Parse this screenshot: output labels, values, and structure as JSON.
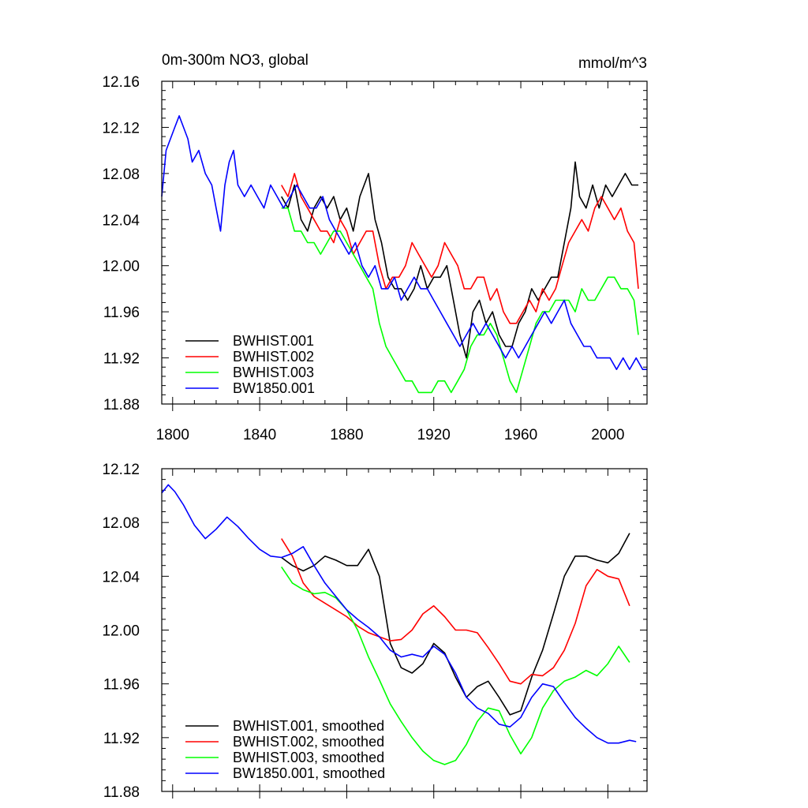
{
  "chart_data": [
    {
      "type": "line",
      "title": "0m-300m NO3, global",
      "units": "mmol/m^3",
      "xlabel": "",
      "ylabel": "",
      "xlim": [
        1795,
        2018
      ],
      "ylim": [
        11.88,
        12.16
      ],
      "xticks": [
        1800,
        1840,
        1880,
        1920,
        1960,
        2000
      ],
      "yticks": [
        11.88,
        11.92,
        11.96,
        12.0,
        12.04,
        12.08,
        12.12,
        12.16
      ],
      "ytick_labels": [
        "11.88",
        "11.92",
        "11.96",
        "12.00",
        "12.04",
        "12.08",
        "12.12",
        "12.16"
      ],
      "legend_position": "bottom-left",
      "grid": false,
      "series": [
        {
          "name": "BWHIST.001",
          "color": "#000000",
          "x": [
            1850,
            1853,
            1856,
            1859,
            1862,
            1865,
            1868,
            1871,
            1874,
            1877,
            1880,
            1883,
            1886,
            1888,
            1890,
            1893,
            1896,
            1899,
            1902,
            1905,
            1908,
            1911,
            1914,
            1917,
            1920,
            1923,
            1926,
            1929,
            1932,
            1935,
            1938,
            1941,
            1944,
            1947,
            1950,
            1953,
            1956,
            1959,
            1962,
            1965,
            1968,
            1971,
            1974,
            1977,
            1980,
            1983,
            1985,
            1987,
            1990,
            1993,
            1996,
            1999,
            2002,
            2005,
            2008,
            2011,
            2014
          ],
          "y": [
            12.06,
            12.05,
            12.07,
            12.04,
            12.03,
            12.05,
            12.06,
            12.05,
            12.06,
            12.04,
            12.05,
            12.03,
            12.06,
            12.07,
            12.08,
            12.04,
            12.02,
            11.99,
            11.98,
            11.98,
            11.97,
            11.98,
            12.0,
            11.98,
            11.99,
            11.99,
            12.0,
            11.97,
            11.94,
            11.92,
            11.96,
            11.97,
            11.95,
            11.96,
            11.94,
            11.93,
            11.93,
            11.95,
            11.96,
            11.98,
            11.97,
            11.98,
            11.99,
            11.99,
            12.02,
            12.05,
            12.09,
            12.06,
            12.05,
            12.07,
            12.05,
            12.07,
            12.06,
            12.07,
            12.08,
            12.07,
            12.07
          ]
        },
        {
          "name": "BWHIST.002",
          "color": "#ff0000",
          "x": [
            1850,
            1853,
            1856,
            1859,
            1862,
            1865,
            1868,
            1871,
            1874,
            1877,
            1880,
            1883,
            1886,
            1889,
            1892,
            1895,
            1898,
            1901,
            1904,
            1907,
            1910,
            1913,
            1916,
            1919,
            1922,
            1925,
            1928,
            1931,
            1934,
            1937,
            1940,
            1943,
            1946,
            1949,
            1952,
            1955,
            1958,
            1961,
            1964,
            1967,
            1970,
            1973,
            1976,
            1979,
            1982,
            1985,
            1988,
            1991,
            1994,
            1997,
            2000,
            2003,
            2006,
            2009,
            2012,
            2014
          ],
          "y": [
            12.07,
            12.06,
            12.08,
            12.06,
            12.05,
            12.04,
            12.03,
            12.03,
            12.02,
            12.04,
            12.03,
            12.01,
            12.02,
            12.03,
            12.03,
            12.0,
            11.98,
            11.99,
            11.99,
            12.0,
            12.02,
            12.01,
            12.0,
            11.99,
            12.0,
            12.02,
            12.01,
            12.0,
            11.98,
            11.98,
            11.99,
            11.99,
            11.97,
            11.98,
            11.96,
            11.95,
            11.95,
            11.96,
            11.97,
            11.96,
            11.98,
            11.97,
            11.98,
            12.0,
            12.02,
            12.03,
            12.04,
            12.03,
            12.05,
            12.06,
            12.05,
            12.04,
            12.05,
            12.03,
            12.02,
            11.98
          ]
        },
        {
          "name": "BWHIST.003",
          "color": "#00ff00",
          "x": [
            1850,
            1853,
            1856,
            1859,
            1862,
            1865,
            1868,
            1871,
            1874,
            1877,
            1880,
            1883,
            1886,
            1889,
            1892,
            1895,
            1898,
            1901,
            1904,
            1907,
            1910,
            1913,
            1916,
            1919,
            1922,
            1925,
            1928,
            1931,
            1934,
            1937,
            1940,
            1943,
            1946,
            1949,
            1952,
            1955,
            1958,
            1961,
            1964,
            1967,
            1970,
            1973,
            1976,
            1979,
            1982,
            1985,
            1988,
            1991,
            1994,
            1997,
            2000,
            2003,
            2006,
            2009,
            2012,
            2014
          ],
          "y": [
            12.05,
            12.05,
            12.03,
            12.03,
            12.02,
            12.02,
            12.01,
            12.02,
            12.03,
            12.03,
            12.02,
            12.01,
            12.0,
            11.99,
            11.98,
            11.95,
            11.93,
            11.92,
            11.91,
            11.9,
            11.9,
            11.89,
            11.89,
            11.89,
            11.9,
            11.9,
            11.89,
            11.9,
            11.91,
            11.93,
            11.94,
            11.94,
            11.95,
            11.94,
            11.92,
            11.9,
            11.89,
            11.91,
            11.93,
            11.95,
            11.96,
            11.96,
            11.97,
            11.97,
            11.97,
            11.96,
            11.98,
            11.97,
            11.97,
            11.98,
            11.99,
            11.99,
            11.98,
            11.98,
            11.97,
            11.94
          ]
        },
        {
          "name": "BW1850.001",
          "color": "#0000ff",
          "x": [
            1795,
            1797,
            1799,
            1801,
            1803,
            1805,
            1807,
            1809,
            1812,
            1815,
            1818,
            1820,
            1822,
            1824,
            1826,
            1828,
            1830,
            1833,
            1836,
            1839,
            1842,
            1845,
            1848,
            1851,
            1854,
            1857,
            1860,
            1863,
            1866,
            1869,
            1872,
            1875,
            1878,
            1881,
            1884,
            1887,
            1890,
            1893,
            1896,
            1899,
            1902,
            1905,
            1908,
            1911,
            1914,
            1917,
            1920,
            1923,
            1926,
            1929,
            1932,
            1935,
            1938,
            1941,
            1944,
            1947,
            1950,
            1953,
            1956,
            1959,
            1962,
            1965,
            1968,
            1971,
            1974,
            1977,
            1980,
            1983,
            1986,
            1989,
            1992,
            1995,
            1998,
            2001,
            2004,
            2007,
            2010,
            2013,
            2016,
            2018
          ],
          "y": [
            12.06,
            12.1,
            12.11,
            12.12,
            12.13,
            12.12,
            12.11,
            12.09,
            12.1,
            12.08,
            12.07,
            12.05,
            12.03,
            12.07,
            12.09,
            12.1,
            12.07,
            12.06,
            12.07,
            12.06,
            12.05,
            12.07,
            12.06,
            12.05,
            12.06,
            12.07,
            12.06,
            12.05,
            12.05,
            12.06,
            12.04,
            12.03,
            12.02,
            12.01,
            12.02,
            12.0,
            11.99,
            12.0,
            11.98,
            11.98,
            11.99,
            11.97,
            11.98,
            11.99,
            11.98,
            11.98,
            11.97,
            11.96,
            11.95,
            11.94,
            11.93,
            11.94,
            11.95,
            11.94,
            11.95,
            11.94,
            11.93,
            11.92,
            11.93,
            11.92,
            11.93,
            11.94,
            11.95,
            11.96,
            11.95,
            11.96,
            11.97,
            11.95,
            11.94,
            11.93,
            11.93,
            11.92,
            11.92,
            11.92,
            11.91,
            11.92,
            11.91,
            11.92,
            11.91,
            11.91
          ]
        }
      ]
    },
    {
      "type": "line",
      "title": "",
      "xlabel": "",
      "ylabel": "",
      "xlim": [
        1795,
        2018
      ],
      "ylim": [
        11.88,
        12.12
      ],
      "xticks": [
        1800,
        1840,
        1880,
        1920,
        1960,
        2000
      ],
      "yticks": [
        11.88,
        11.92,
        11.96,
        12.0,
        12.04,
        12.08,
        12.12
      ],
      "ytick_labels": [
        "11.88",
        "11.92",
        "11.96",
        "12.00",
        "12.04",
        "12.08",
        "12.12"
      ],
      "legend_position": "bottom-left",
      "grid": false,
      "series": [
        {
          "name": "BWHIST.001, smoothed",
          "color": "#000000",
          "x": [
            1850,
            1855,
            1860,
            1865,
            1870,
            1875,
            1880,
            1885,
            1890,
            1895,
            1900,
            1905,
            1910,
            1915,
            1920,
            1925,
            1930,
            1935,
            1940,
            1945,
            1950,
            1955,
            1960,
            1965,
            1970,
            1975,
            1980,
            1985,
            1990,
            1995,
            2000,
            2005,
            2010
          ],
          "y": [
            12.054,
            12.048,
            12.044,
            12.048,
            12.055,
            12.052,
            12.048,
            12.048,
            12.06,
            12.04,
            11.99,
            11.972,
            11.968,
            11.975,
            11.99,
            11.983,
            11.965,
            11.95,
            11.958,
            11.962,
            11.95,
            11.937,
            11.94,
            11.965,
            11.985,
            12.012,
            12.04,
            12.055,
            12.055,
            12.052,
            12.05,
            12.057,
            12.072
          ]
        },
        {
          "name": "BWHIST.002, smoothed",
          "color": "#ff0000",
          "x": [
            1850,
            1855,
            1860,
            1865,
            1870,
            1875,
            1880,
            1885,
            1890,
            1895,
            1900,
            1905,
            1910,
            1915,
            1920,
            1925,
            1930,
            1935,
            1940,
            1945,
            1950,
            1955,
            1960,
            1965,
            1970,
            1975,
            1980,
            1985,
            1990,
            1995,
            2000,
            2005,
            2010
          ],
          "y": [
            12.068,
            12.055,
            12.035,
            12.025,
            12.02,
            12.015,
            12.01,
            12.003,
            11.998,
            11.995,
            11.992,
            11.993,
            12.0,
            12.012,
            12.018,
            12.01,
            12.0,
            12.0,
            11.998,
            11.987,
            11.975,
            11.962,
            11.96,
            11.967,
            11.966,
            11.972,
            11.985,
            12.005,
            12.033,
            12.045,
            12.04,
            12.038,
            12.018
          ]
        },
        {
          "name": "BWHIST.003, smoothed",
          "color": "#00ff00",
          "x": [
            1850,
            1855,
            1860,
            1865,
            1870,
            1875,
            1880,
            1885,
            1890,
            1895,
            1900,
            1905,
            1910,
            1915,
            1920,
            1925,
            1930,
            1935,
            1940,
            1945,
            1950,
            1955,
            1960,
            1965,
            1970,
            1975,
            1980,
            1985,
            1990,
            1995,
            2000,
            2005,
            2010
          ],
          "y": [
            12.047,
            12.035,
            12.03,
            12.027,
            12.028,
            12.024,
            12.015,
            12.0,
            11.98,
            11.963,
            11.945,
            11.932,
            11.92,
            11.91,
            11.903,
            11.9,
            11.903,
            11.915,
            11.932,
            11.942,
            11.94,
            11.922,
            11.908,
            11.92,
            11.942,
            11.955,
            11.962,
            11.965,
            11.97,
            11.966,
            11.975,
            11.988,
            11.976
          ]
        },
        {
          "name": "BW1850.001, smoothed",
          "color": "#0000ff",
          "x": [
            1795,
            1798,
            1801,
            1805,
            1810,
            1815,
            1820,
            1825,
            1830,
            1835,
            1840,
            1845,
            1850,
            1855,
            1860,
            1865,
            1870,
            1875,
            1880,
            1885,
            1890,
            1895,
            1900,
            1905,
            1910,
            1915,
            1920,
            1925,
            1930,
            1935,
            1940,
            1945,
            1950,
            1955,
            1960,
            1965,
            1970,
            1975,
            1980,
            1985,
            1990,
            1995,
            2000,
            2005,
            2010,
            2013
          ],
          "y": [
            12.102,
            12.108,
            12.103,
            12.093,
            12.078,
            12.068,
            12.075,
            12.084,
            12.077,
            12.068,
            12.06,
            12.055,
            12.054,
            12.057,
            12.062,
            12.048,
            12.035,
            12.025,
            12.015,
            12.008,
            12.002,
            11.995,
            11.985,
            11.98,
            11.982,
            11.98,
            11.988,
            11.982,
            11.968,
            11.95,
            11.942,
            11.938,
            11.93,
            11.928,
            11.935,
            11.95,
            11.96,
            11.958,
            11.946,
            11.935,
            11.927,
            11.92,
            11.916,
            11.916,
            11.918,
            11.917
          ]
        }
      ]
    }
  ]
}
